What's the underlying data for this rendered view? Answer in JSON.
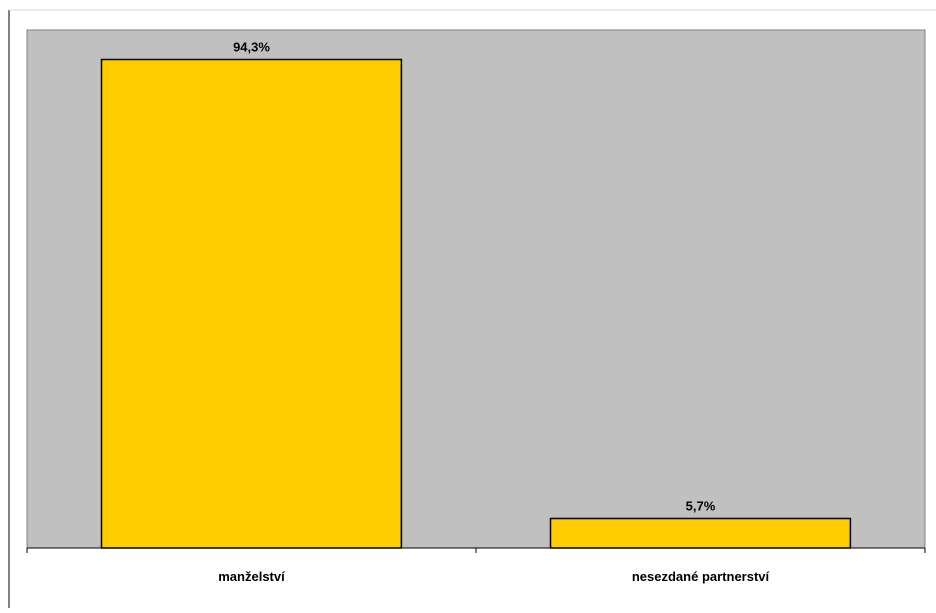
{
  "chart_data": {
    "type": "bar",
    "categories": [
      "manželství",
      "nesezdané partnerství"
    ],
    "values": [
      94.3,
      5.7
    ],
    "data_labels": [
      "94,3%",
      "5,7%"
    ],
    "title": "",
    "xlabel": "",
    "ylabel": "",
    "ylim": [
      0,
      100
    ],
    "grid": false,
    "legend": "none"
  },
  "colors": {
    "plot_background": "#c0c0c0",
    "bar_fill": "#ffcc00",
    "bar_stroke": "#000000",
    "page_background": "#ffffff"
  }
}
